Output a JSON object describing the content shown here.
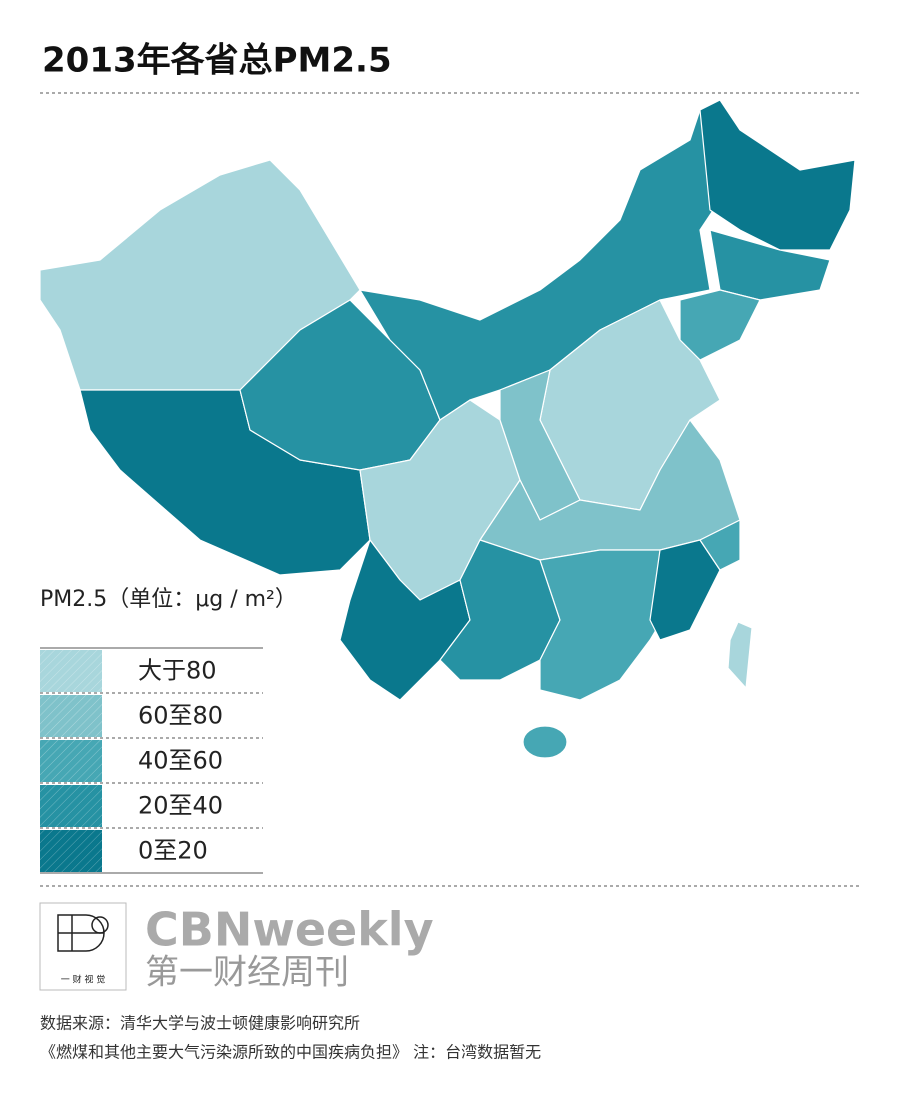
{
  "header": {
    "title": "2013年各省总PM2.5"
  },
  "legend": {
    "title": "PM2.5（单位：μg / m²）",
    "items": [
      {
        "label": "大于80",
        "color": "#a8d6dc"
      },
      {
        "label": "60至80",
        "color": "#7fc2ca"
      },
      {
        "label": "40至60",
        "color": "#46a7b4"
      },
      {
        "label": "20至40",
        "color": "#2692a3"
      },
      {
        "label": "0至20",
        "color": "#0a788d"
      }
    ]
  },
  "brand": {
    "logo": "一 财 视 觉",
    "name": "CBNweekly",
    "name_cn": "第一财经周刊"
  },
  "footer": {
    "source": "数据来源：清华大学与波士顿健康影响研究所",
    "note": "《燃煤和其他主要大气污染源所致的中国疾病负担》 注：台湾数据暂无"
  }
}
